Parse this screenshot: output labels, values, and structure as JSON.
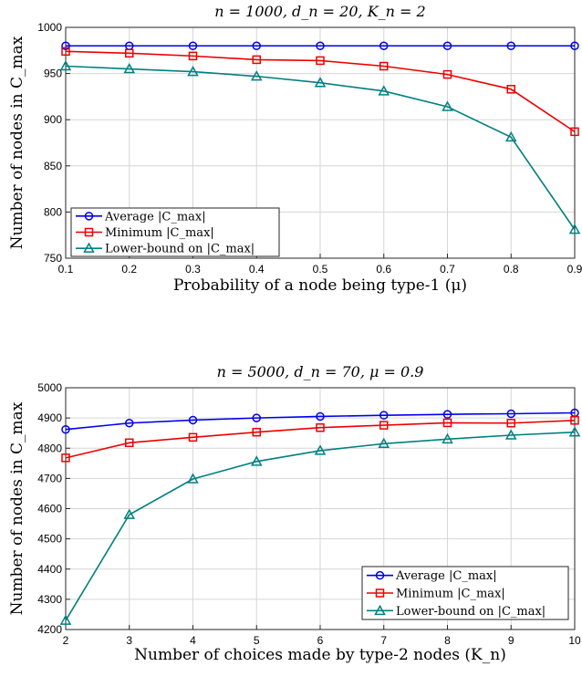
{
  "chart_data": [
    {
      "type": "line",
      "title": "n = 1000, d_n = 20, K_n = 2",
      "xlabel": "Probability of a node being type-1 (μ)",
      "ylabel": "Number of nodes in C_max",
      "xlim": [
        0.1,
        0.9
      ],
      "ylim": [
        750,
        1000
      ],
      "xticks": [
        "0.1",
        "0.2",
        "0.3",
        "0.4",
        "0.5",
        "0.6",
        "0.7",
        "0.8",
        "0.9"
      ],
      "yticks": [
        "750",
        "800",
        "850",
        "900",
        "950",
        "1000"
      ],
      "grid": true,
      "legend_position": "bottom-left",
      "x": [
        0.1,
        0.2,
        0.3,
        0.4,
        0.5,
        0.6,
        0.7,
        0.8,
        0.9
      ],
      "series": [
        {
          "name": "Average |C_max|",
          "color": "#0000ee",
          "marker": "circle",
          "values": [
            980,
            980,
            980,
            980,
            980,
            980,
            980,
            980,
            980
          ]
        },
        {
          "name": "Minimum |C_max|",
          "color": "#ee0000",
          "marker": "square",
          "values": [
            974,
            972,
            969,
            965,
            964,
            958,
            949,
            933,
            887
          ]
        },
        {
          "name": "Lower-bound on |C_max|",
          "color": "#008080",
          "marker": "triangle",
          "values": [
            958,
            955,
            952,
            947,
            940,
            931,
            914,
            881,
            781
          ]
        }
      ]
    },
    {
      "type": "line",
      "title": "n = 5000, d_n = 70, μ = 0.9",
      "xlabel": "Number of choices made by type-2 nodes (K_n)",
      "ylabel": "Number of nodes in C_max",
      "xlim": [
        2,
        10
      ],
      "ylim": [
        4200,
        5000
      ],
      "xticks": [
        "2",
        "3",
        "4",
        "5",
        "6",
        "7",
        "8",
        "9",
        "10"
      ],
      "yticks": [
        "4200",
        "4300",
        "4400",
        "4500",
        "4600",
        "4700",
        "4800",
        "4900",
        "5000"
      ],
      "grid": true,
      "legend_position": "bottom-right",
      "x": [
        2,
        3,
        4,
        5,
        6,
        7,
        8,
        9,
        10
      ],
      "series": [
        {
          "name": "Average |C_max|",
          "color": "#0000ee",
          "marker": "circle",
          "values": [
            4862,
            4883,
            4893,
            4900,
            4905,
            4909,
            4912,
            4914,
            4917
          ]
        },
        {
          "name": "Minimum |C_max|",
          "color": "#ee0000",
          "marker": "square",
          "values": [
            4768,
            4818,
            4836,
            4853,
            4868,
            4876,
            4884,
            4883,
            4892
          ]
        },
        {
          "name": "Lower-bound on |C_max|",
          "color": "#008080",
          "marker": "triangle",
          "values": [
            4230,
            4580,
            4698,
            4756,
            4792,
            4815,
            4830,
            4843,
            4853
          ]
        }
      ]
    }
  ]
}
